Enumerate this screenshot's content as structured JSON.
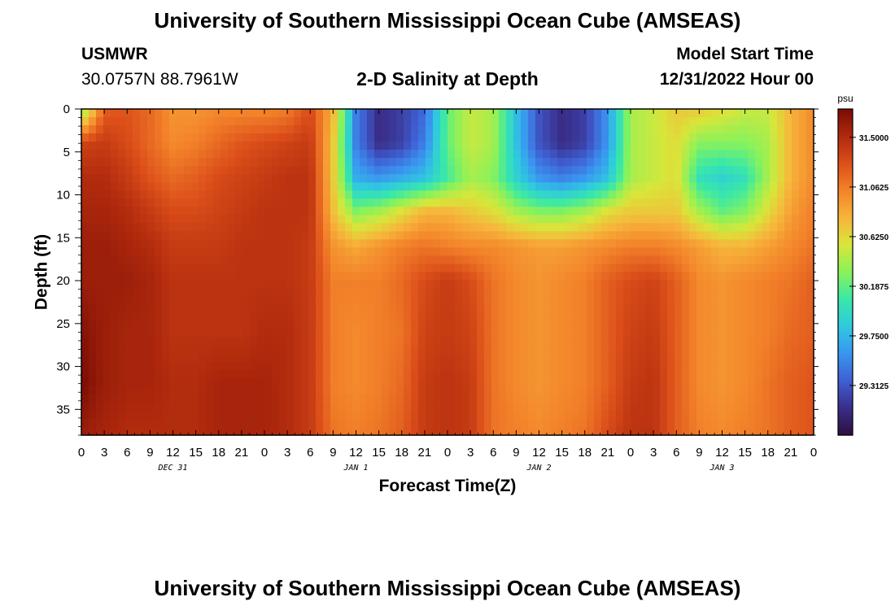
{
  "header": {
    "title": "University of Southern Mississippi Ocean Cube (AMSEAS)",
    "station_name": "USMWR",
    "station_coords": "30.0757N  88.7961W",
    "subtitle": "2-D Salinity at Depth",
    "model_start_label": "Model Start Time",
    "model_start_value": "12/31/2022 Hour 00"
  },
  "footer": {
    "title": "University of Southern Mississippi Ocean Cube (AMSEAS)"
  },
  "chart_data": {
    "type": "heatmap",
    "variable": "Salinity",
    "xlabel": "Forecast Time(Z)",
    "ylabel": "Depth (ft)",
    "x_hours_range": [
      0,
      96
    ],
    "x_tick_step_hours": 3,
    "x_tick_labels": [
      "0",
      "3",
      "6",
      "9",
      "12",
      "15",
      "18",
      "21",
      "0",
      "3",
      "6",
      "9",
      "12",
      "15",
      "18",
      "21",
      "0",
      "3",
      "6",
      "9",
      "12",
      "15",
      "18",
      "21",
      "0",
      "3",
      "6",
      "9",
      "12",
      "15",
      "18",
      "21",
      "0"
    ],
    "date_labels": [
      {
        "hour": 12,
        "label": "DEC 31"
      },
      {
        "hour": 36,
        "label": "JAN 1"
      },
      {
        "hour": 60,
        "label": "JAN 2"
      },
      {
        "hour": 84,
        "label": "JAN 3"
      }
    ],
    "y_range_ft": [
      0,
      38
    ],
    "y_ticks": [
      0,
      5,
      10,
      15,
      20,
      25,
      30,
      35
    ],
    "y_tick_labels": [
      "0",
      "5",
      "10",
      "15",
      "20",
      "25",
      "30",
      "35"
    ],
    "colorbar": {
      "unit": "psu",
      "range": [
        28.875,
        31.75
      ],
      "tick_values": [
        31.5,
        31.0625,
        30.625,
        30.1875,
        29.75,
        29.3125
      ],
      "tick_labels": [
        "31.5000",
        "31.0625",
        "30.6250",
        "30.1875",
        "29.7500",
        "29.3125"
      ],
      "colormap": [
        "#2d0f3f",
        "#3a2e8a",
        "#3f5fd2",
        "#3a95f0",
        "#2fc9df",
        "#39e8a8",
        "#8af25a",
        "#d8e63a",
        "#f7b53b",
        "#f3832a",
        "#dc4f1a",
        "#b02a0d",
        "#7a0c05"
      ]
    },
    "grid": {
      "hours": [
        0,
        3,
        6,
        9,
        12,
        15,
        18,
        21,
        24,
        27,
        30,
        33,
        36,
        39,
        42,
        45,
        48,
        51,
        54,
        57,
        60,
        63,
        66,
        69,
        72,
        75,
        78,
        81,
        84,
        87,
        90,
        93,
        96
      ],
      "depths_ft": [
        0,
        4,
        8,
        12,
        16,
        20,
        26,
        32,
        38
      ],
      "values_psu": [
        [
          30.25,
          31.2,
          31.25,
          31.15,
          30.95,
          30.95,
          31.0,
          31.0,
          31.0,
          31.05,
          31.3,
          30.8,
          29.5,
          29.1,
          29.2,
          29.4,
          30.2,
          30.5,
          30.4,
          29.8,
          29.3,
          29.1,
          29.2,
          29.6,
          30.4,
          30.5,
          30.7,
          30.7,
          30.6,
          30.5,
          30.5,
          30.8,
          31.0
        ],
        [
          31.35,
          31.4,
          31.3,
          31.15,
          31.0,
          31.05,
          31.15,
          31.25,
          31.3,
          31.35,
          31.4,
          30.7,
          29.5,
          29.1,
          29.2,
          29.5,
          30.2,
          30.5,
          30.4,
          29.8,
          29.3,
          29.1,
          29.2,
          29.6,
          30.4,
          30.5,
          30.6,
          30.3,
          30.3,
          30.3,
          30.4,
          30.8,
          31.0
        ],
        [
          31.5,
          31.5,
          31.4,
          31.25,
          31.15,
          31.2,
          31.3,
          31.35,
          31.4,
          31.45,
          31.45,
          30.7,
          29.7,
          29.6,
          29.7,
          29.8,
          30.1,
          30.4,
          30.3,
          29.9,
          29.6,
          29.5,
          29.6,
          29.8,
          30.4,
          30.5,
          30.6,
          30.0,
          29.9,
          30.0,
          30.4,
          30.8,
          31.0
        ],
        [
          31.55,
          31.55,
          31.5,
          31.4,
          31.3,
          31.3,
          31.35,
          31.4,
          31.45,
          31.45,
          31.45,
          30.75,
          30.3,
          30.4,
          30.6,
          30.8,
          30.8,
          30.7,
          30.6,
          30.4,
          30.3,
          30.3,
          30.4,
          30.6,
          30.7,
          30.7,
          30.7,
          30.4,
          30.2,
          30.3,
          30.6,
          30.9,
          31.05
        ],
        [
          31.6,
          31.6,
          31.55,
          31.5,
          31.4,
          31.4,
          31.4,
          31.45,
          31.45,
          31.45,
          31.4,
          30.95,
          30.85,
          30.95,
          31.05,
          31.1,
          31.05,
          31.0,
          31.0,
          30.95,
          30.9,
          30.9,
          30.95,
          31.0,
          31.05,
          31.05,
          31.0,
          30.9,
          30.8,
          30.8,
          30.9,
          31.0,
          31.1
        ],
        [
          31.6,
          31.6,
          31.6,
          31.55,
          31.45,
          31.45,
          31.45,
          31.45,
          31.45,
          31.45,
          31.4,
          31.05,
          31.05,
          31.05,
          31.15,
          31.3,
          31.4,
          31.3,
          31.1,
          31.0,
          30.95,
          31.0,
          31.05,
          31.2,
          31.3,
          31.35,
          31.2,
          31.0,
          30.95,
          31.0,
          31.05,
          31.1,
          31.2
        ],
        [
          31.7,
          31.6,
          31.55,
          31.55,
          31.45,
          31.45,
          31.45,
          31.45,
          31.5,
          31.5,
          31.4,
          31.05,
          31.0,
          31.05,
          31.1,
          31.35,
          31.4,
          31.35,
          31.1,
          31.0,
          30.95,
          31.0,
          31.05,
          31.2,
          31.35,
          31.4,
          31.2,
          31.0,
          30.95,
          31.0,
          31.05,
          31.15,
          31.2
        ],
        [
          31.75,
          31.6,
          31.55,
          31.55,
          31.5,
          31.5,
          31.55,
          31.55,
          31.55,
          31.5,
          31.4,
          31.05,
          31.0,
          31.05,
          31.15,
          31.4,
          31.45,
          31.4,
          31.1,
          31.0,
          30.95,
          31.0,
          31.05,
          31.2,
          31.4,
          31.45,
          31.2,
          31.0,
          30.95,
          31.0,
          31.1,
          31.2,
          31.25
        ],
        [
          31.6,
          31.55,
          31.5,
          31.5,
          31.5,
          31.5,
          31.55,
          31.55,
          31.55,
          31.5,
          31.4,
          31.1,
          31.05,
          31.1,
          31.2,
          31.4,
          31.45,
          31.4,
          31.1,
          31.05,
          31.0,
          31.05,
          31.1,
          31.3,
          31.45,
          31.45,
          31.2,
          31.05,
          31.0,
          31.05,
          31.1,
          31.2,
          31.25
        ]
      ]
    }
  }
}
